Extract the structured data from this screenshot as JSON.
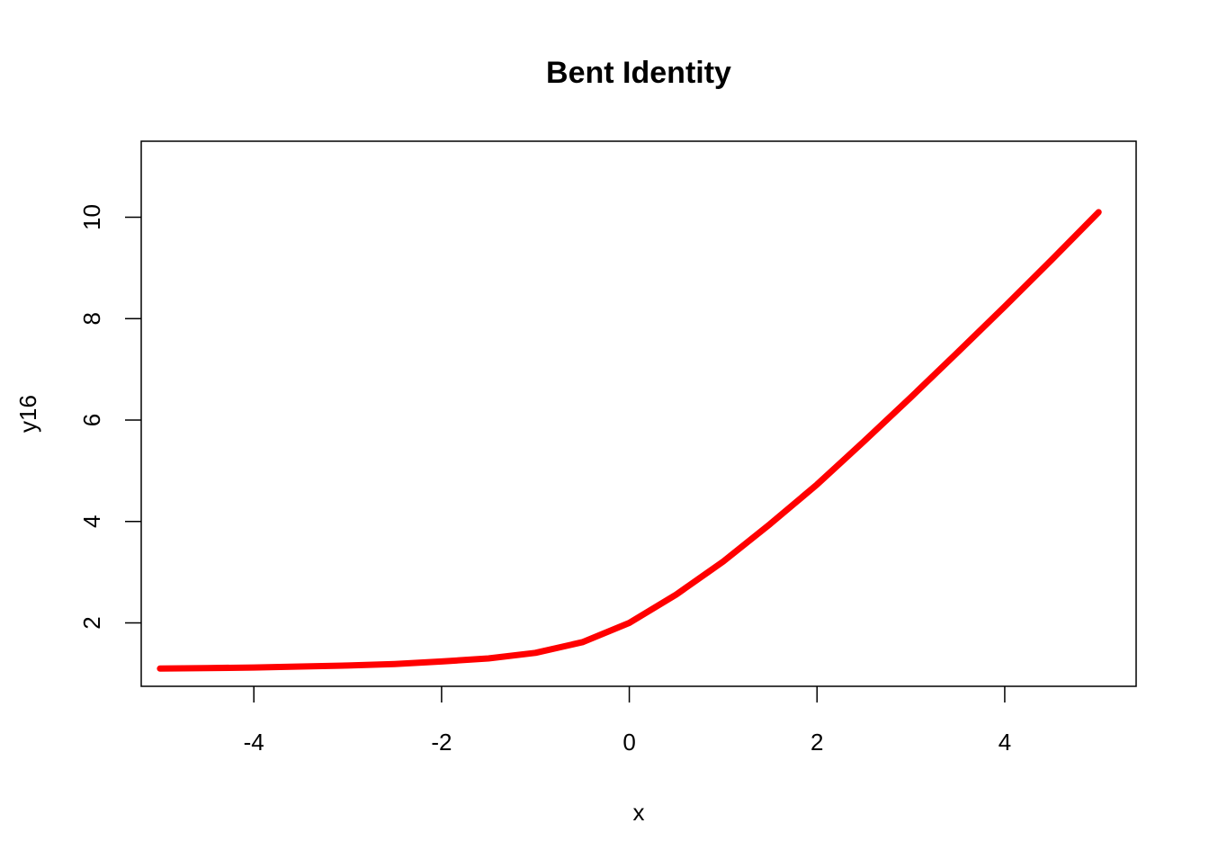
{
  "chart_data": {
    "type": "line",
    "title": "Bent Identity",
    "xlabel": "x",
    "ylabel": "y16",
    "xlim": [
      -5.2,
      5.4
    ],
    "ylim": [
      0.75,
      11.5
    ],
    "x_ticks": [
      -4,
      -2,
      0,
      2,
      4
    ],
    "x_tick_labels": [
      "-4",
      "-2",
      "0",
      "2",
      "4"
    ],
    "y_ticks": [
      2,
      4,
      6,
      8,
      10
    ],
    "y_tick_labels": [
      "2",
      "4",
      "6",
      "8",
      "10"
    ],
    "grid": false,
    "legend": "none",
    "series": [
      {
        "color": "#ff0000",
        "x": [
          -5,
          -4.5,
          -4,
          -3.5,
          -3,
          -2.5,
          -2,
          -1.5,
          -1,
          -0.5,
          0,
          0.5,
          1,
          1.5,
          2,
          2.5,
          3,
          3.5,
          4,
          4.5,
          5
        ],
        "y": [
          1.1,
          1.11,
          1.12,
          1.14,
          1.16,
          1.19,
          1.24,
          1.3,
          1.41,
          1.62,
          2.0,
          2.56,
          3.21,
          3.95,
          4.73,
          5.58,
          6.45,
          7.34,
          8.24,
          9.16,
          10.1
        ]
      }
    ]
  }
}
